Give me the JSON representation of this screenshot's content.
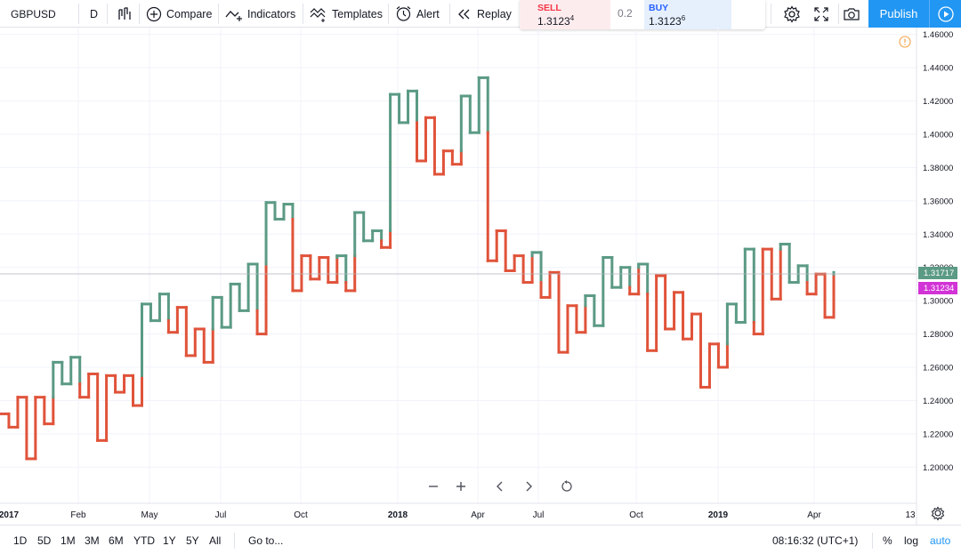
{
  "toolbar": {
    "symbol": "GBPUSD",
    "interval": "D",
    "compare_label": "Compare",
    "indicators_label": "Indicators",
    "templates_label": "Templates",
    "alert_label": "Alert",
    "replay_label": "Replay",
    "sell_label": "SELL",
    "sell_price": "1.3123",
    "sell_price_sup": "4",
    "spread": "0.2",
    "buy_label": "BUY",
    "buy_price": "1.3123",
    "buy_price_sup": "6",
    "plus": "+",
    "minus": "–",
    "publish_label": "Publish"
  },
  "colors": {
    "up": "#5b9a84",
    "down": "#e0533a",
    "accent": "#2196f3",
    "last_price_tag": "#5b9a84",
    "prev_close_tag": "#d233d6",
    "warning": "#f7a24a"
  },
  "icons": [
    "bar-style-icon",
    "compare-plus-icon",
    "indicators-icon",
    "templates-icon",
    "alert-clock-icon",
    "replay-icon",
    "warning-icon",
    "settings-gear-icon",
    "fullscreen-icon",
    "camera-icon",
    "play-icon",
    "zoom-out-icon",
    "zoom-in-icon",
    "scroll-left-icon",
    "scroll-right-icon",
    "reset-icon"
  ],
  "price_axis": {
    "ticks": [
      "1.46000",
      "1.44000",
      "1.42000",
      "1.40000",
      "1.38000",
      "1.36000",
      "1.34000",
      "1.32000",
      "1.30000",
      "1.28000",
      "1.26000",
      "1.24000",
      "1.22000",
      "1.20000"
    ],
    "last_price": "1.31717",
    "prev_close": "1.31234"
  },
  "time_axis": {
    "labels": [
      "2017",
      "Feb",
      "May",
      "Jul",
      "Oct",
      "2018",
      "Apr",
      "Jul",
      "Oct",
      "2019",
      "Apr",
      "13"
    ]
  },
  "chart_data": {
    "type": "line",
    "style": "kagi",
    "symbol": "GBPUSD",
    "ylim": [
      1.19,
      1.462
    ],
    "reversal_prices": [
      1.232,
      1.224,
      1.242,
      1.205,
      1.242,
      1.226,
      1.263,
      1.25,
      1.266,
      1.242,
      1.256,
      1.216,
      1.255,
      1.245,
      1.255,
      1.237,
      1.298,
      1.288,
      1.304,
      1.281,
      1.296,
      1.267,
      1.283,
      1.263,
      1.302,
      1.284,
      1.31,
      1.294,
      1.322,
      1.28,
      1.359,
      1.349,
      1.358,
      1.306,
      1.327,
      1.313,
      1.326,
      1.311,
      1.327,
      1.306,
      1.353,
      1.336,
      1.342,
      1.332,
      1.424,
      1.407,
      1.426,
      1.384,
      1.41,
      1.376,
      1.39,
      1.382,
      1.423,
      1.401,
      1.434,
      1.324,
      1.342,
      1.318,
      1.327,
      1.311,
      1.329,
      1.302,
      1.317,
      1.269,
      1.297,
      1.281,
      1.303,
      1.285,
      1.326,
      1.308,
      1.32,
      1.304,
      1.322,
      1.27,
      1.315,
      1.283,
      1.305,
      1.277,
      1.292,
      1.248,
      1.274,
      1.26,
      1.298,
      1.287,
      1.331,
      1.28,
      1.331,
      1.301,
      1.334,
      1.311,
      1.321,
      1.304,
      1.316,
      1.29,
      1.317
    ]
  },
  "bottom_bar": {
    "ranges": [
      "1D",
      "5D",
      "1M",
      "3M",
      "6M",
      "YTD",
      "1Y",
      "5Y",
      "All"
    ],
    "goto_label": "Go to...",
    "time": "08:16:32 (UTC+1)",
    "percent_label": "%",
    "log_label": "log",
    "auto_label": "auto"
  }
}
